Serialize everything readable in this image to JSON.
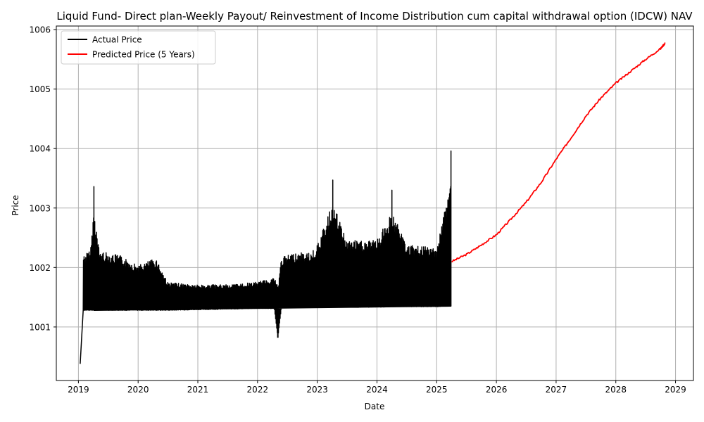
{
  "chart_data": {
    "type": "line",
    "title": "Liquid Fund- Direct plan-Weekly Payout/ Reinvestment of Income Distribution cum capital withdrawal option (IDCW) NAV",
    "xlabel": "Date",
    "ylabel": "Price",
    "xlim": [
      2018.63,
      2029.3
    ],
    "ylim": [
      1000.1,
      1006.06
    ],
    "x_ticks": [
      2019,
      2020,
      2021,
      2022,
      2023,
      2024,
      2025,
      2026,
      2027,
      2028,
      2029
    ],
    "x_tick_labels": [
      "2019",
      "2020",
      "2021",
      "2022",
      "2023",
      "2024",
      "2025",
      "2026",
      "2027",
      "2028",
      "2029"
    ],
    "y_ticks": [
      1001,
      1002,
      1003,
      1004,
      1005,
      1006
    ],
    "y_tick_labels": [
      "1001",
      "1002",
      "1003",
      "1004",
      "1005",
      "1006"
    ],
    "grid": true,
    "legend": {
      "position": "top-left",
      "entries": [
        {
          "label": "Actual Price",
          "color": "#000000"
        },
        {
          "label": "Predicted Price (5 Years)",
          "color": "#ff0000"
        }
      ]
    },
    "series": [
      {
        "name": "Actual Price",
        "color": "#000000",
        "description_points": {
          "x": [
            2019.03,
            2019.08,
            2019.2,
            2019.26,
            2019.35,
            2019.7,
            2020.0,
            2020.3,
            2020.5,
            2021.0,
            2021.5,
            2022.0,
            2022.28,
            2022.34,
            2022.4,
            2022.6,
            2022.9,
            2023.0,
            2023.26,
            2023.5,
            2024.0,
            2024.25,
            2024.5,
            2025.0,
            2025.24
          ],
          "low": [
            1000.38,
            1001.28,
            1001.28,
            1001.28,
            1001.28,
            1001.28,
            1001.28,
            1001.28,
            1001.28,
            1001.29,
            1001.3,
            1001.31,
            1001.31,
            1000.82,
            1001.32,
            1001.32,
            1001.33,
            1001.33,
            1001.33,
            1001.33,
            1001.33,
            1001.34,
            1001.34,
            1001.34,
            1001.35
          ],
          "high": [
            1000.38,
            1002.42,
            1002.5,
            1003.36,
            1002.5,
            1002.4,
            1002.2,
            1002.35,
            1001.85,
            1001.8,
            1001.8,
            1001.85,
            1001.95,
            1001.9,
            1002.35,
            1002.45,
            1002.45,
            1002.6,
            1003.47,
            1002.7,
            1002.7,
            1003.3,
            1002.6,
            1002.55,
            1003.96
          ]
        }
      },
      {
        "name": "Predicted Price (5 Years)",
        "color": "#ff0000",
        "x": [
          2025.25,
          2025.5,
          2025.75,
          2026.0,
          2026.25,
          2026.5,
          2026.75,
          2027.0,
          2027.25,
          2027.5,
          2027.75,
          2028.0,
          2028.25,
          2028.5,
          2028.75,
          2028.83
        ],
        "values": [
          1002.1,
          1002.22,
          1002.38,
          1002.55,
          1002.82,
          1003.1,
          1003.43,
          1003.82,
          1004.18,
          1004.55,
          1004.85,
          1005.1,
          1005.3,
          1005.5,
          1005.68,
          1005.78
        ]
      }
    ]
  }
}
